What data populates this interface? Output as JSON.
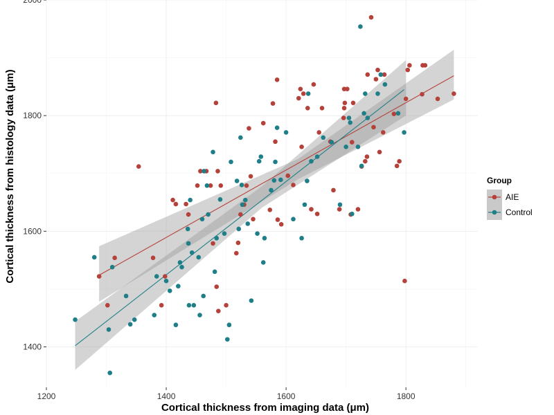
{
  "chart_data": {
    "type": "scatter",
    "xlabel": "Cortical thickness from imaging data (μm)",
    "ylabel": "Cortical thickness from histology data (μm)",
    "xlim": [
      1200,
      1920
    ],
    "ylim": [
      1330,
      2000
    ],
    "x_ticks": [
      1200,
      1400,
      1600,
      1800
    ],
    "y_ticks": [
      1400,
      1600,
      1800,
      2000
    ],
    "grid": true,
    "legend": {
      "title": "Group",
      "placement": "right"
    },
    "series": [
      {
        "name": "AIE",
        "color": "#B5423A",
        "points": [
          [
            1288,
            1522
          ],
          [
            1302,
            1472
          ],
          [
            1314,
            1554
          ],
          [
            1354,
            1712
          ],
          [
            1378,
            1554
          ],
          [
            1392,
            1472
          ],
          [
            1398,
            1522
          ],
          [
            1411,
            1654
          ],
          [
            1416,
            1647
          ],
          [
            1433,
            1647
          ],
          [
            1437,
            1629
          ],
          [
            1452,
            1679
          ],
          [
            1457,
            1704
          ],
          [
            1467,
            1704
          ],
          [
            1474,
            1679
          ],
          [
            1478,
            1579
          ],
          [
            1483,
            1822
          ],
          [
            1486,
            1704
          ],
          [
            1491,
            1679
          ],
          [
            1484,
            1504
          ],
          [
            1487,
            1462
          ],
          [
            1500,
            1472
          ],
          [
            1517,
            1562
          ],
          [
            1520,
            1580
          ],
          [
            1524,
            1629
          ],
          [
            1530,
            1646
          ],
          [
            1534,
            1679
          ],
          [
            1538,
            1778
          ],
          [
            1541,
            1695
          ],
          [
            1545,
            1621
          ],
          [
            1562,
            1787
          ],
          [
            1573,
            1637
          ],
          [
            1578,
            1821
          ],
          [
            1582,
            1755
          ],
          [
            1585,
            1862
          ],
          [
            1586,
            1620
          ],
          [
            1592,
            1612
          ],
          [
            1603,
            1696
          ],
          [
            1612,
            1680
          ],
          [
            1621,
            1830
          ],
          [
            1624,
            1846
          ],
          [
            1626,
            1746
          ],
          [
            1629,
            1838
          ],
          [
            1636,
            1813
          ],
          [
            1642,
            1638
          ],
          [
            1646,
            1854
          ],
          [
            1652,
            1630
          ],
          [
            1655,
            1771
          ],
          [
            1660,
            1813
          ],
          [
            1674,
            1755
          ],
          [
            1679,
            1671
          ],
          [
            1689,
            1638
          ],
          [
            1696,
            1796
          ],
          [
            1697,
            1813
          ],
          [
            1697,
            1846
          ],
          [
            1702,
            1846
          ],
          [
            1698,
            1822
          ],
          [
            1708,
            1629
          ],
          [
            1710,
            1754
          ],
          [
            1712,
            1822
          ],
          [
            1720,
            1638
          ],
          [
            1726,
            1712
          ],
          [
            1732,
            1721
          ],
          [
            1735,
            1729
          ],
          [
            1736,
            1871
          ],
          [
            1742,
            1970
          ],
          [
            1746,
            1780
          ],
          [
            1750,
            1863
          ],
          [
            1753,
            1879
          ],
          [
            1756,
            1737
          ],
          [
            1762,
            1771
          ],
          [
            1764,
            1871
          ],
          [
            1780,
            1803
          ],
          [
            1785,
            1713
          ],
          [
            1789,
            1721
          ],
          [
            1798,
            1514
          ],
          [
            1800,
            1829
          ],
          [
            1803,
            1879
          ],
          [
            1806,
            1887
          ],
          [
            1827,
            1837
          ],
          [
            1828,
            1887
          ],
          [
            1832,
            1887
          ],
          [
            1853,
            1829
          ],
          [
            1880,
            1838
          ]
        ],
        "fit": [
          [
            1288,
            1524
          ],
          [
            1880,
            1869
          ]
        ],
        "band": {
          "x": [
            1288,
            1620,
            1880
          ],
          "lower": [
            1478,
            1690,
            1828
          ],
          "upper": [
            1574,
            1725,
            1914
          ]
        }
      },
      {
        "name": "Control",
        "color": "#1E7F88",
        "points": [
          [
            1248,
            1447
          ],
          [
            1280,
            1555
          ],
          [
            1304,
            1430
          ],
          [
            1306,
            1355
          ],
          [
            1310,
            1538
          ],
          [
            1333,
            1488
          ],
          [
            1340,
            1439
          ],
          [
            1347,
            1447
          ],
          [
            1380,
            1455
          ],
          [
            1384,
            1522
          ],
          [
            1400,
            1514
          ],
          [
            1406,
            1497
          ],
          [
            1416,
            1438
          ],
          [
            1420,
            1505
          ],
          [
            1423,
            1546
          ],
          [
            1426,
            1538
          ],
          [
            1436,
            1604
          ],
          [
            1437,
            1579
          ],
          [
            1438,
            1472
          ],
          [
            1440,
            1654
          ],
          [
            1443,
            1563
          ],
          [
            1446,
            1472
          ],
          [
            1454,
            1555
          ],
          [
            1456,
            1455
          ],
          [
            1460,
            1621
          ],
          [
            1462,
            1488
          ],
          [
            1463,
            1704
          ],
          [
            1468,
            1679
          ],
          [
            1470,
            1629
          ],
          [
            1478,
            1737
          ],
          [
            1481,
            1530
          ],
          [
            1484,
            1588
          ],
          [
            1490,
            1655
          ],
          [
            1497,
            1596
          ],
          [
            1502,
            1413
          ],
          [
            1505,
            1438
          ],
          [
            1508,
            1720
          ],
          [
            1518,
            1687
          ],
          [
            1521,
            1604
          ],
          [
            1524,
            1762
          ],
          [
            1526,
            1680
          ],
          [
            1527,
            1646
          ],
          [
            1532,
            1654
          ],
          [
            1536,
            1613
          ],
          [
            1542,
            1480
          ],
          [
            1552,
            1596
          ],
          [
            1555,
            1721
          ],
          [
            1558,
            1729
          ],
          [
            1562,
            1546
          ],
          [
            1564,
            1588
          ],
          [
            1575,
            1671
          ],
          [
            1580,
            1688
          ],
          [
            1582,
            1720
          ],
          [
            1585,
            1779
          ],
          [
            1591,
            1689
          ],
          [
            1600,
            1771
          ],
          [
            1612,
            1621
          ],
          [
            1626,
            1588
          ],
          [
            1631,
            1646
          ],
          [
            1635,
            1687
          ],
          [
            1637,
            1838
          ],
          [
            1642,
            1721
          ],
          [
            1652,
            1729
          ],
          [
            1662,
            1762
          ],
          [
            1676,
            1754
          ],
          [
            1690,
            1646
          ],
          [
            1700,
            1746
          ],
          [
            1705,
            1796
          ],
          [
            1707,
            1788
          ],
          [
            1710,
            1630
          ],
          [
            1720,
            1746
          ],
          [
            1724,
            1954
          ],
          [
            1726,
            1713
          ],
          [
            1730,
            1804
          ],
          [
            1732,
            1838
          ],
          [
            1736,
            1796
          ],
          [
            1753,
            1838
          ],
          [
            1758,
            1871
          ],
          [
            1765,
            1854
          ],
          [
            1787,
            1804
          ],
          [
            1797,
            1771
          ]
        ],
        "fit": [
          [
            1248,
            1402
          ],
          [
            1797,
            1845
          ]
        ],
        "band": {
          "x": [
            1248,
            1560,
            1800
          ],
          "lower": [
            1360,
            1641,
            1800
          ],
          "upper": [
            1444,
            1678,
            1896
          ]
        }
      }
    ]
  }
}
